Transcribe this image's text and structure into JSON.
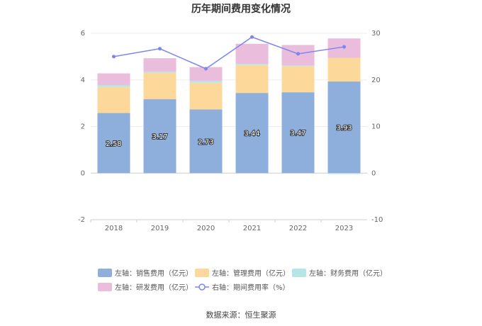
{
  "chart_data": {
    "type": "bar",
    "title": "历年期间费用变化情况",
    "categories": [
      "2018",
      "2019",
      "2020",
      "2021",
      "2022",
      "2023"
    ],
    "y_left": {
      "ylim": [
        -2,
        6
      ],
      "ticks": [
        "-2",
        "0",
        "2",
        "4",
        "6"
      ]
    },
    "y_right": {
      "ylim": [
        -10,
        30
      ],
      "ticks": [
        "-10",
        "0",
        "10",
        "20",
        "30"
      ]
    },
    "series": [
      {
        "name": "左轴：销售费用（亿元）",
        "axis": "left",
        "kind": "stacked-bar",
        "color": "#8eaedc",
        "values": [
          2.58,
          3.17,
          2.73,
          3.44,
          3.47,
          3.93
        ],
        "labels": [
          "2.58",
          "3.17",
          "2.73",
          "3.44",
          "3.47",
          "3.93"
        ]
      },
      {
        "name": "左轴：管理费用（亿元）",
        "axis": "left",
        "kind": "stacked-bar",
        "color": "#fcd99b",
        "values": [
          1.12,
          1.14,
          1.15,
          1.2,
          1.12,
          1.02
        ]
      },
      {
        "name": "左轴：财务费用（亿元）",
        "axis": "left",
        "kind": "stacked-bar",
        "color": "#b5e5e6",
        "values": [
          0.08,
          0.05,
          0.08,
          0.05,
          0.03,
          -0.04
        ]
      },
      {
        "name": "左轴：研发费用（亿元）",
        "axis": "left",
        "kind": "stacked-bar",
        "color": "#eabddd",
        "values": [
          0.5,
          0.57,
          0.59,
          0.86,
          0.88,
          0.83
        ]
      },
      {
        "name": "右轴：期间费用率（%）",
        "axis": "right",
        "kind": "line",
        "color": "#7b86f0",
        "values": [
          25.0,
          26.7,
          22.4,
          29.2,
          25.6,
          27.1
        ]
      }
    ],
    "legend_position": "bottom",
    "source": "数据来源：恒生聚源"
  }
}
